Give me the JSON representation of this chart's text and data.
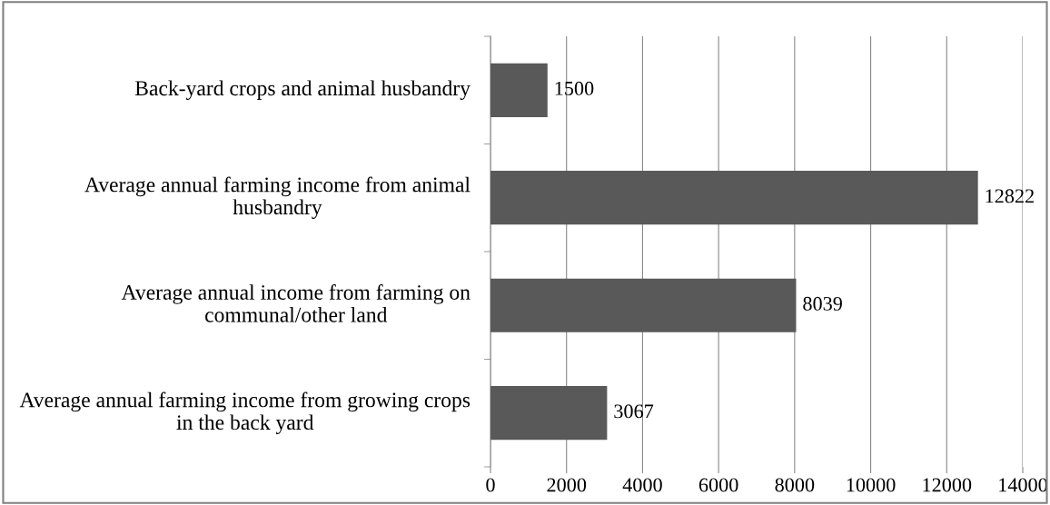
{
  "chart_data": {
    "type": "bar",
    "orientation": "horizontal",
    "categories": [
      "Back-yard crops and animal husbandry",
      "Average annual farming income from animal husbandry",
      "Average annual income from farming on communal/other land",
      "Average annual farming income from growing crops in the back yard"
    ],
    "values": [
      1500,
      12822,
      8039,
      3067
    ],
    "color": "#595959",
    "xlim": [
      0,
      14000
    ],
    "xticks": [
      0,
      2000,
      4000,
      6000,
      8000,
      10000,
      12000,
      14000
    ],
    "grid": "x",
    "data_labels": true,
    "legend": false
  }
}
